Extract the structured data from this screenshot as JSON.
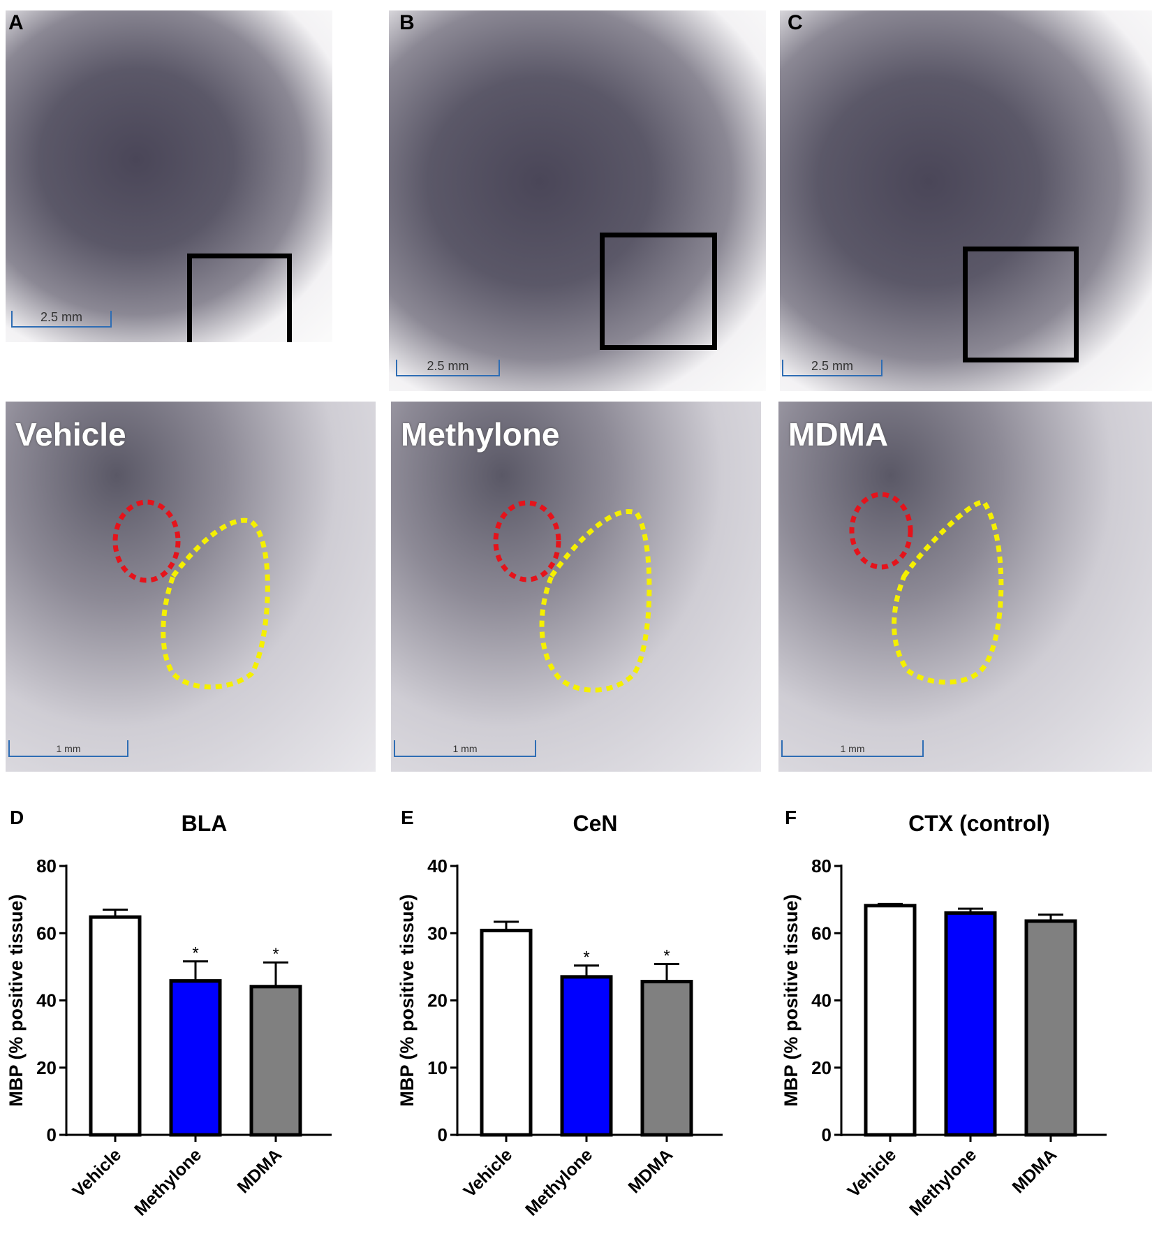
{
  "micrographs": {
    "top": [
      {
        "letter": "A",
        "scale": "2.5 mm"
      },
      {
        "letter": "B",
        "scale": "2.5 mm"
      },
      {
        "letter": "C",
        "scale": "2.5 mm"
      }
    ],
    "zoom": [
      {
        "label": "Vehicle",
        "scale": "1 mm"
      },
      {
        "label": "Methylone",
        "scale": "1 mm"
      },
      {
        "label": "MDMA",
        "scale": "1 mm"
      }
    ]
  },
  "colors": {
    "vehicle": "#ffffff",
    "methylone": "#0000ff",
    "mdma": "#808080",
    "roi_bla": "#e5131b",
    "roi_cen": "#f5f000",
    "scalebar": "#2e6db4"
  },
  "chart_data": [
    {
      "letter": "D",
      "type": "bar",
      "title": "BLA",
      "ylabel": "MBP (% positive tissue)",
      "xlabel": "",
      "categories": [
        "Vehicle",
        "Methylone",
        "MDMA"
      ],
      "values": [
        64.8,
        45.8,
        44.1
      ],
      "errors": [
        2.2,
        5.8,
        7.2
      ],
      "significance": [
        "",
        "*",
        "*"
      ],
      "ylim": [
        0,
        80
      ],
      "yticks": [
        0,
        20,
        40,
        60,
        80
      ]
    },
    {
      "letter": "E",
      "type": "bar",
      "title": "CeN",
      "ylabel": "MBP (% positive tissue)",
      "xlabel": "",
      "categories": [
        "Vehicle",
        "Methylone",
        "MDMA"
      ],
      "values": [
        30.4,
        23.5,
        22.8
      ],
      "errors": [
        1.3,
        1.7,
        2.6
      ],
      "significance": [
        "",
        "*",
        "*"
      ],
      "ylim": [
        0,
        40
      ],
      "yticks": [
        0,
        10,
        20,
        30,
        40
      ]
    },
    {
      "letter": "F",
      "type": "bar",
      "title": "CTX (control)",
      "ylabel": "MBP (% positive tissue)",
      "xlabel": "",
      "categories": [
        "Vehicle",
        "Methylone",
        "MDMA"
      ],
      "values": [
        68.2,
        66.0,
        63.6
      ],
      "errors": [
        0.5,
        1.3,
        1.9
      ],
      "significance": [
        "",
        "",
        ""
      ],
      "ylim": [
        0,
        80
      ],
      "yticks": [
        0,
        20,
        40,
        60,
        80
      ]
    }
  ]
}
